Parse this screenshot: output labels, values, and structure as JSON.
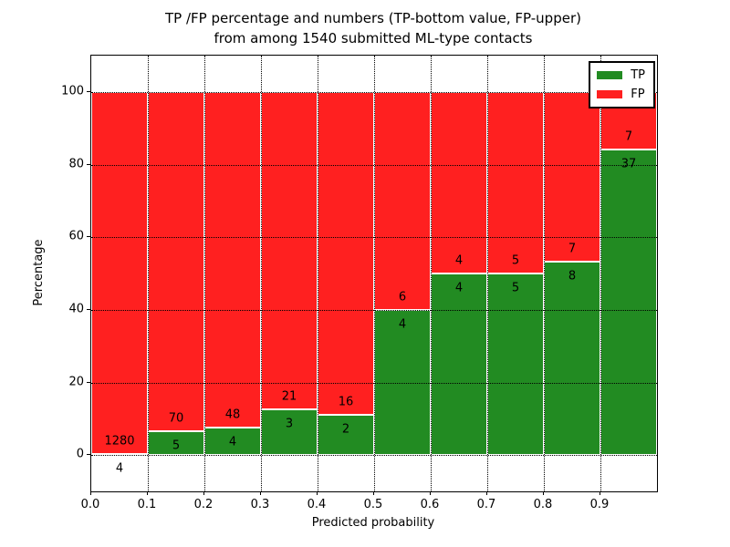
{
  "chart_data": {
    "type": "bar",
    "stacked": true,
    "title_lines": [
      "TP /FP percentage and numbers (TP-bottom value, FP-upper)",
      "from among 1540 submitted ML-type contacts"
    ],
    "xlabel": "Predicted probability",
    "ylabel": "Percentage",
    "xlim": [
      0.0,
      1.0
    ],
    "ylim": [
      -10,
      110
    ],
    "grid": true,
    "xticks": [
      "0.0",
      "0.1",
      "0.2",
      "0.3",
      "0.4",
      "0.5",
      "0.6",
      "0.7",
      "0.8",
      "0.9"
    ],
    "yticks": [
      0,
      20,
      40,
      60,
      80,
      100
    ],
    "bin_edges": [
      0.0,
      0.1,
      0.2,
      0.3,
      0.4,
      0.5,
      0.6,
      0.7,
      0.8,
      0.9,
      1.0
    ],
    "series": [
      {
        "name": "TP",
        "color": "#228b22",
        "counts": [
          4,
          5,
          4,
          3,
          2,
          4,
          4,
          5,
          8,
          37
        ]
      },
      {
        "name": "FP",
        "color": "#ff2020",
        "counts": [
          1280,
          70,
          48,
          21,
          16,
          6,
          4,
          5,
          7,
          7
        ]
      }
    ],
    "tp_percentages": [
      0.31,
      6.67,
      7.69,
      12.5,
      11.11,
      40.0,
      50.0,
      50.0,
      53.33,
      84.09
    ],
    "legend": {
      "position": "upper right",
      "entries": [
        "TP",
        "FP"
      ]
    }
  }
}
